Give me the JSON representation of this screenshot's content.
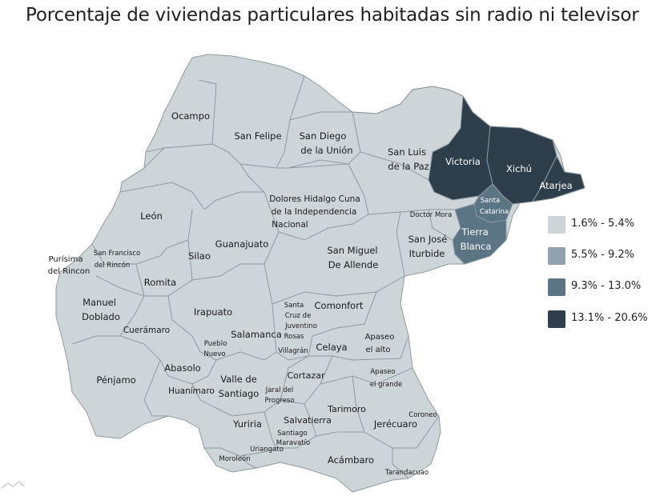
{
  "title": "Porcentaje de viviendas particulares habitadas sin radio ni televisor",
  "colors": {
    "class1": "#cdd5d9",
    "class2": "#8fa2ad",
    "class3": "#5b7585",
    "class4": "#2e3e4a",
    "border": "#8e9aa0"
  },
  "legend": [
    {
      "label": "1.6% - 5.4%",
      "class": "class1"
    },
    {
      "label": "5.5% - 9.2%",
      "class": "class2"
    },
    {
      "label": "9.3% - 13.0%",
      "class": "class3"
    },
    {
      "label": "13.1% - 20.6%",
      "class": "class4"
    }
  ],
  "municipalities": {
    "ocampo": {
      "lines": [
        "Ocampo"
      ],
      "class": "class1"
    },
    "san_felipe": {
      "lines": [
        "San Felipe"
      ],
      "class": "class1"
    },
    "san_diego": {
      "lines": [
        "San Diego",
        "de la Unión"
      ],
      "class": "class1"
    },
    "san_luis": {
      "lines": [
        "San Luis",
        "de la Paz"
      ],
      "class": "class1"
    },
    "victoria": {
      "lines": [
        "Victoria"
      ],
      "class": "class4"
    },
    "xichu": {
      "lines": [
        "Xichú"
      ],
      "class": "class4"
    },
    "atarjea": {
      "lines": [
        "Atarjea"
      ],
      "class": "class4"
    },
    "santa_catarina": {
      "lines": [
        "Santa",
        "Catarina"
      ],
      "class": "class3"
    },
    "tierra_blanca": {
      "lines": [
        "Tierra",
        "Blanca"
      ],
      "class": "class3"
    },
    "doctor_mora": {
      "lines": [
        "Doctor Mora"
      ],
      "class": "class1"
    },
    "san_jose": {
      "lines": [
        "San José",
        "Iturbide"
      ],
      "class": "class1"
    },
    "dolores": {
      "lines": [
        "Dolores Hidalgo Cuna",
        "de la Independencia",
        "Nacional"
      ],
      "class": "class1"
    },
    "san_miguel": {
      "lines": [
        "San Miguel",
        "De Allende"
      ],
      "class": "class1"
    },
    "leon": {
      "lines": [
        "León"
      ],
      "class": "class1"
    },
    "guanajuato": {
      "lines": [
        "Guanajuato"
      ],
      "class": "class1"
    },
    "silao": {
      "lines": [
        "Silao"
      ],
      "class": "class1"
    },
    "purisima": {
      "lines": [
        "Purísima",
        "del Rincon"
      ],
      "class": "class1"
    },
    "san_francisco": {
      "lines": [
        "San Francisco",
        "del Rincón"
      ],
      "class": "class1"
    },
    "romita": {
      "lines": [
        "Romita"
      ],
      "class": "class1"
    },
    "manuel_doblado": {
      "lines": [
        "Manuel",
        "Doblado"
      ],
      "class": "class1"
    },
    "cueramaro": {
      "lines": [
        "Cuerámaro"
      ],
      "class": "class1"
    },
    "irapuato": {
      "lines": [
        "Irapuato"
      ],
      "class": "class1"
    },
    "salamanca": {
      "lines": [
        "Salamanca"
      ],
      "class": "class1"
    },
    "santa_cruz": {
      "lines": [
        "Santa",
        "Cruz de",
        "Juventino",
        "Rosas"
      ],
      "class": "class1"
    },
    "comonfort": {
      "lines": [
        "Comonfort"
      ],
      "class": "class1"
    },
    "apaseo_alto": {
      "lines": [
        "Apaseo",
        "el alto"
      ],
      "class": "class1"
    },
    "celaya": {
      "lines": [
        "Celaya"
      ],
      "class": "class1"
    },
    "villagran": {
      "lines": [
        "Villagrán"
      ],
      "class": "class1"
    },
    "pueblo_nuevo": {
      "lines": [
        "Pueblo",
        "Nuevo"
      ],
      "class": "class1"
    },
    "penjamo": {
      "lines": [
        "Pénjamo"
      ],
      "class": "class1"
    },
    "abasolo": {
      "lines": [
        "Abasolo"
      ],
      "class": "class1"
    },
    "huanimaro": {
      "lines": [
        "Huanímaro"
      ],
      "class": "class1"
    },
    "valle": {
      "lines": [
        "Valle de",
        "Santiago"
      ],
      "class": "class1"
    },
    "cortazar": {
      "lines": [
        "Cortazar"
      ],
      "class": "class1"
    },
    "jaral": {
      "lines": [
        "Jaral del",
        "Progreso"
      ],
      "class": "class1"
    },
    "apaseo_grande": {
      "lines": [
        "Apaseo",
        "el grande"
      ],
      "class": "class1"
    },
    "tarimoro": {
      "lines": [
        "Tarimoro"
      ],
      "class": "class1"
    },
    "yuriria": {
      "lines": [
        "Yuriria"
      ],
      "class": "class1"
    },
    "salvatierra": {
      "lines": [
        "Salvatierra"
      ],
      "class": "class1"
    },
    "jerecuaro": {
      "lines": [
        "Jerécuaro"
      ],
      "class": "class1"
    },
    "coroneo": {
      "lines": [
        "Coroneo"
      ],
      "class": "class1"
    },
    "santiago_maravatio": {
      "lines": [
        "Santiago",
        "Maravatío"
      ],
      "class": "class1"
    },
    "uriangato": {
      "lines": [
        "Uriangato"
      ],
      "class": "class1"
    },
    "moroleon": {
      "lines": [
        "Moroleón"
      ],
      "class": "class1"
    },
    "acambaro": {
      "lines": [
        "Acámbaro"
      ],
      "class": "class1"
    },
    "tarandacuao": {
      "lines": [
        "Tarandacuao"
      ],
      "class": "class1"
    }
  }
}
